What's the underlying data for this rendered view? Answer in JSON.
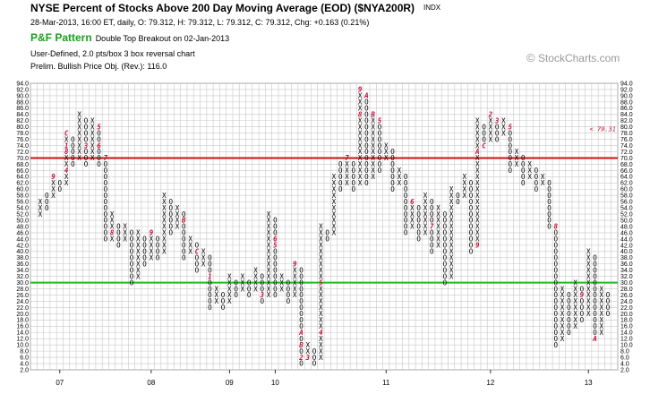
{
  "header": {
    "title": "NYSE Percent of Stocks Above 200 Day Moving Average (EOD) ($NYA200R)",
    "exchange": "INDX",
    "quote": "28-Mar-2013, 16:00 ET, daily, O: 79.312, H: 79.312, L: 79.312, C: 79.312, Chg: +0.163 (0.21%)",
    "pattern_label": "P&F Pattern",
    "pattern_text": "Double Top Breakout on 02-Jan-2013",
    "box_info": "User-Defined, 2.0 pts/box 3 box reversal chart",
    "price_objective": "Prelim. Bullish Price Obj. (Rev.): 116.0"
  },
  "watermark": {
    "symbol": "©",
    "text": "StockCharts.com"
  },
  "colors": {
    "x_mark": "#000000",
    "o_mark": "#000000",
    "month_mark": "#c0103a",
    "resistance_line": "#cc1111",
    "support_line": "#22bb22",
    "grid": "#c8c8c8"
  },
  "chart_data": {
    "type": "point-and-figure",
    "box_size": 2.0,
    "reversal": 3,
    "ylim": [
      2.0,
      94.0
    ],
    "y_ticks": [
      "2.0",
      "4.0",
      "6.0",
      "8.0",
      "10.0",
      "12.0",
      "14.0",
      "16.0",
      "18.0",
      "20.0",
      "22.0",
      "24.0",
      "26.0",
      "28.0",
      "30.0",
      "32.0",
      "34.0",
      "36.0",
      "38.0",
      "40.0",
      "42.0",
      "44.0",
      "46.0",
      "48.0",
      "50.0",
      "52.0",
      "54.0",
      "56.0",
      "58.0",
      "60.0",
      "62.0",
      "64.0",
      "66.0",
      "68.0",
      "70.0",
      "72.0",
      "74.0",
      "76.0",
      "78.0",
      "80.0",
      "82.0",
      "84.0",
      "86.0",
      "88.0",
      "90.0",
      "92.0",
      "94.0"
    ],
    "x_labels": [
      {
        "label": "07",
        "column": 3
      },
      {
        "label": "08",
        "column": 17
      },
      {
        "label": "09",
        "column": 29
      },
      {
        "label": "10",
        "column": 36
      },
      {
        "label": "11",
        "column": 53
      },
      {
        "label": "12",
        "column": 69
      },
      {
        "label": "13",
        "column": 84
      }
    ],
    "columns": [
      {
        "t": "X",
        "lo": 52,
        "hi": 56
      },
      {
        "t": "O",
        "lo": 54,
        "hi": 58
      },
      {
        "t": "X",
        "lo": 58,
        "hi": 64,
        "m": [
          [
            64,
            "9"
          ]
        ]
      },
      {
        "t": "O",
        "lo": 60,
        "hi": 62
      },
      {
        "t": "X",
        "lo": 62,
        "hi": 78,
        "m": [
          [
            66,
            "4"
          ],
          [
            78,
            "C"
          ],
          [
            74,
            "1"
          ],
          [
            72,
            "8"
          ]
        ]
      },
      {
        "t": "O",
        "lo": 68,
        "hi": 76
      },
      {
        "t": "X",
        "lo": 70,
        "hi": 84
      },
      {
        "t": "O",
        "lo": 68,
        "hi": 82,
        "m": [
          [
            74,
            "3"
          ]
        ]
      },
      {
        "t": "X",
        "lo": 70,
        "hi": 82
      },
      {
        "t": "O",
        "lo": 68,
        "hi": 80,
        "m": [
          [
            80,
            "5"
          ],
          [
            74,
            "6"
          ]
        ]
      },
      {
        "t": "O",
        "lo": 44,
        "hi": 70,
        "m": [
          [
            70,
            "7"
          ]
        ]
      },
      {
        "t": "X",
        "lo": 44,
        "hi": 52,
        "m": [
          [
            46,
            "8"
          ]
        ]
      },
      {
        "t": "O",
        "lo": 42,
        "hi": 48
      },
      {
        "t": "X",
        "lo": 44,
        "hi": 48
      },
      {
        "t": "O",
        "lo": 30,
        "hi": 46
      },
      {
        "t": "X",
        "lo": 32,
        "hi": 46
      },
      {
        "t": "O",
        "lo": 36,
        "hi": 44
      },
      {
        "t": "X",
        "lo": 38,
        "hi": 46,
        "m": [
          [
            46,
            "9"
          ]
        ]
      },
      {
        "t": "O",
        "lo": 38,
        "hi": 44
      },
      {
        "t": "X",
        "lo": 40,
        "hi": 58
      },
      {
        "t": "O",
        "lo": 46,
        "hi": 56
      },
      {
        "t": "X",
        "lo": 48,
        "hi": 54
      },
      {
        "t": "O",
        "lo": 38,
        "hi": 52,
        "m": [
          [
            50,
            "B"
          ]
        ]
      },
      {
        "t": "X",
        "lo": 40,
        "hi": 44
      },
      {
        "t": "O",
        "lo": 34,
        "hi": 42,
        "m": [
          [
            40,
            "C"
          ]
        ]
      },
      {
        "t": "X",
        "lo": 36,
        "hi": 40
      },
      {
        "t": "O",
        "lo": 22,
        "hi": 38,
        "m": [
          [
            32,
            "1"
          ]
        ]
      },
      {
        "t": "X",
        "lo": 24,
        "hi": 28
      },
      {
        "t": "O",
        "lo": 22,
        "hi": 26
      },
      {
        "t": "X",
        "lo": 24,
        "hi": 32
      },
      {
        "t": "O",
        "lo": 26,
        "hi": 30
      },
      {
        "t": "X",
        "lo": 28,
        "hi": 32
      },
      {
        "t": "O",
        "lo": 26,
        "hi": 30
      },
      {
        "t": "X",
        "lo": 28,
        "hi": 34
      },
      {
        "t": "O",
        "lo": 24,
        "hi": 32,
        "m": [
          [
            26,
            "3"
          ]
        ]
      },
      {
        "t": "X",
        "lo": 26,
        "hi": 52
      },
      {
        "t": "O",
        "lo": 26,
        "hi": 50,
        "m": [
          [
            42,
            "5"
          ],
          [
            44,
            "6"
          ]
        ]
      },
      {
        "t": "X",
        "lo": 28,
        "hi": 32
      },
      {
        "t": "O",
        "lo": 24,
        "hi": 30
      },
      {
        "t": "X",
        "lo": 26,
        "hi": 36,
        "m": [
          [
            36,
            "9"
          ]
        ]
      },
      {
        "t": "O",
        "lo": 4,
        "hi": 34,
        "m": [
          [
            14,
            "A"
          ],
          [
            10,
            "B"
          ],
          [
            6,
            "2"
          ]
        ]
      },
      {
        "t": "X",
        "lo": 6,
        "hi": 10,
        "m": [
          [
            6,
            "3"
          ]
        ]
      },
      {
        "t": "O",
        "lo": 4,
        "hi": 8
      },
      {
        "t": "X",
        "lo": 6,
        "hi": 48,
        "m": [
          [
            14,
            "4"
          ],
          [
            30,
            "5"
          ]
        ]
      },
      {
        "t": "O",
        "lo": 44,
        "hi": 46
      },
      {
        "t": "X",
        "lo": 46,
        "hi": 64
      },
      {
        "t": "O",
        "lo": 60,
        "hi": 68
      },
      {
        "t": "X",
        "lo": 62,
        "hi": 70,
        "m": [
          [
            70,
            "7"
          ]
        ]
      },
      {
        "t": "O",
        "lo": 60,
        "hi": 68
      },
      {
        "t": "X",
        "lo": 62,
        "hi": 92,
        "m": [
          [
            92,
            "9"
          ],
          [
            84,
            "8"
          ]
        ]
      },
      {
        "t": "O",
        "lo": 62,
        "hi": 90,
        "m": [
          [
            90,
            "A"
          ]
        ]
      },
      {
        "t": "X",
        "lo": 64,
        "hi": 84,
        "m": [
          [
            84,
            "B"
          ]
        ]
      },
      {
        "t": "O",
        "lo": 66,
        "hi": 82,
        "m": [
          [
            82,
            "5"
          ]
        ]
      },
      {
        "t": "X",
        "lo": 70,
        "hi": 74
      },
      {
        "t": "O",
        "lo": 60,
        "hi": 72
      },
      {
        "t": "X",
        "lo": 62,
        "hi": 66
      },
      {
        "t": "O",
        "lo": 46,
        "hi": 64
      },
      {
        "t": "X",
        "lo": 48,
        "hi": 56,
        "m": [
          [
            56,
            "6"
          ]
        ]
      },
      {
        "t": "O",
        "lo": 44,
        "hi": 54
      },
      {
        "t": "X",
        "lo": 46,
        "hi": 58
      },
      {
        "t": "O",
        "lo": 40,
        "hi": 56,
        "m": [
          [
            48,
            "7"
          ]
        ]
      },
      {
        "t": "X",
        "lo": 42,
        "hi": 54
      },
      {
        "t": "O",
        "lo": 30,
        "hi": 52
      },
      {
        "t": "X",
        "lo": 32,
        "hi": 60
      },
      {
        "t": "O",
        "lo": 56,
        "hi": 58
      },
      {
        "t": "X",
        "lo": 58,
        "hi": 64
      },
      {
        "t": "O",
        "lo": 40,
        "hi": 62
      },
      {
        "t": "X",
        "lo": 42,
        "hi": 82,
        "m": [
          [
            72,
            "A"
          ],
          [
            42,
            "9"
          ]
        ]
      },
      {
        "t": "O",
        "lo": 74,
        "hi": 80,
        "m": [
          [
            74,
            "C"
          ]
        ]
      },
      {
        "t": "X",
        "lo": 76,
        "hi": 84,
        "m": [
          [
            84,
            "2"
          ]
        ]
      },
      {
        "t": "O",
        "lo": 76,
        "hi": 82,
        "m": [
          [
            82,
            "3"
          ]
        ]
      },
      {
        "t": "X",
        "lo": 78,
        "hi": 82
      },
      {
        "t": "O",
        "lo": 66,
        "hi": 80,
        "m": [
          [
            80,
            "5"
          ]
        ]
      },
      {
        "t": "X",
        "lo": 68,
        "hi": 72
      },
      {
        "t": "O",
        "lo": 62,
        "hi": 70
      },
      {
        "t": "X",
        "lo": 64,
        "hi": 68
      },
      {
        "t": "O",
        "lo": 60,
        "hi": 66
      },
      {
        "t": "X",
        "lo": 62,
        "hi": 64
      },
      {
        "t": "O",
        "lo": 48,
        "hi": 62
      },
      {
        "t": "O",
        "lo": 10,
        "hi": 48,
        "m": [
          [
            48,
            "8"
          ]
        ]
      },
      {
        "t": "X",
        "lo": 12,
        "hi": 28
      },
      {
        "t": "O",
        "lo": 14,
        "hi": 26
      },
      {
        "t": "X",
        "lo": 16,
        "hi": 30
      },
      {
        "t": "O",
        "lo": 18,
        "hi": 28,
        "m": [
          [
            26,
            "9"
          ]
        ]
      },
      {
        "t": "X",
        "lo": 20,
        "hi": 40
      },
      {
        "t": "O",
        "lo": 12,
        "hi": 38,
        "m": [
          [
            12,
            "A"
          ]
        ]
      },
      {
        "t": "X",
        "lo": 14,
        "hi": 28
      },
      {
        "t": "O",
        "lo": 20,
        "hi": 26
      }
    ],
    "lines": [
      {
        "name": "resistance",
        "y": 70
      },
      {
        "name": "support",
        "y": 30
      }
    ],
    "annotations": [
      {
        "text": "< 79.31",
        "y": 79.31
      }
    ]
  }
}
